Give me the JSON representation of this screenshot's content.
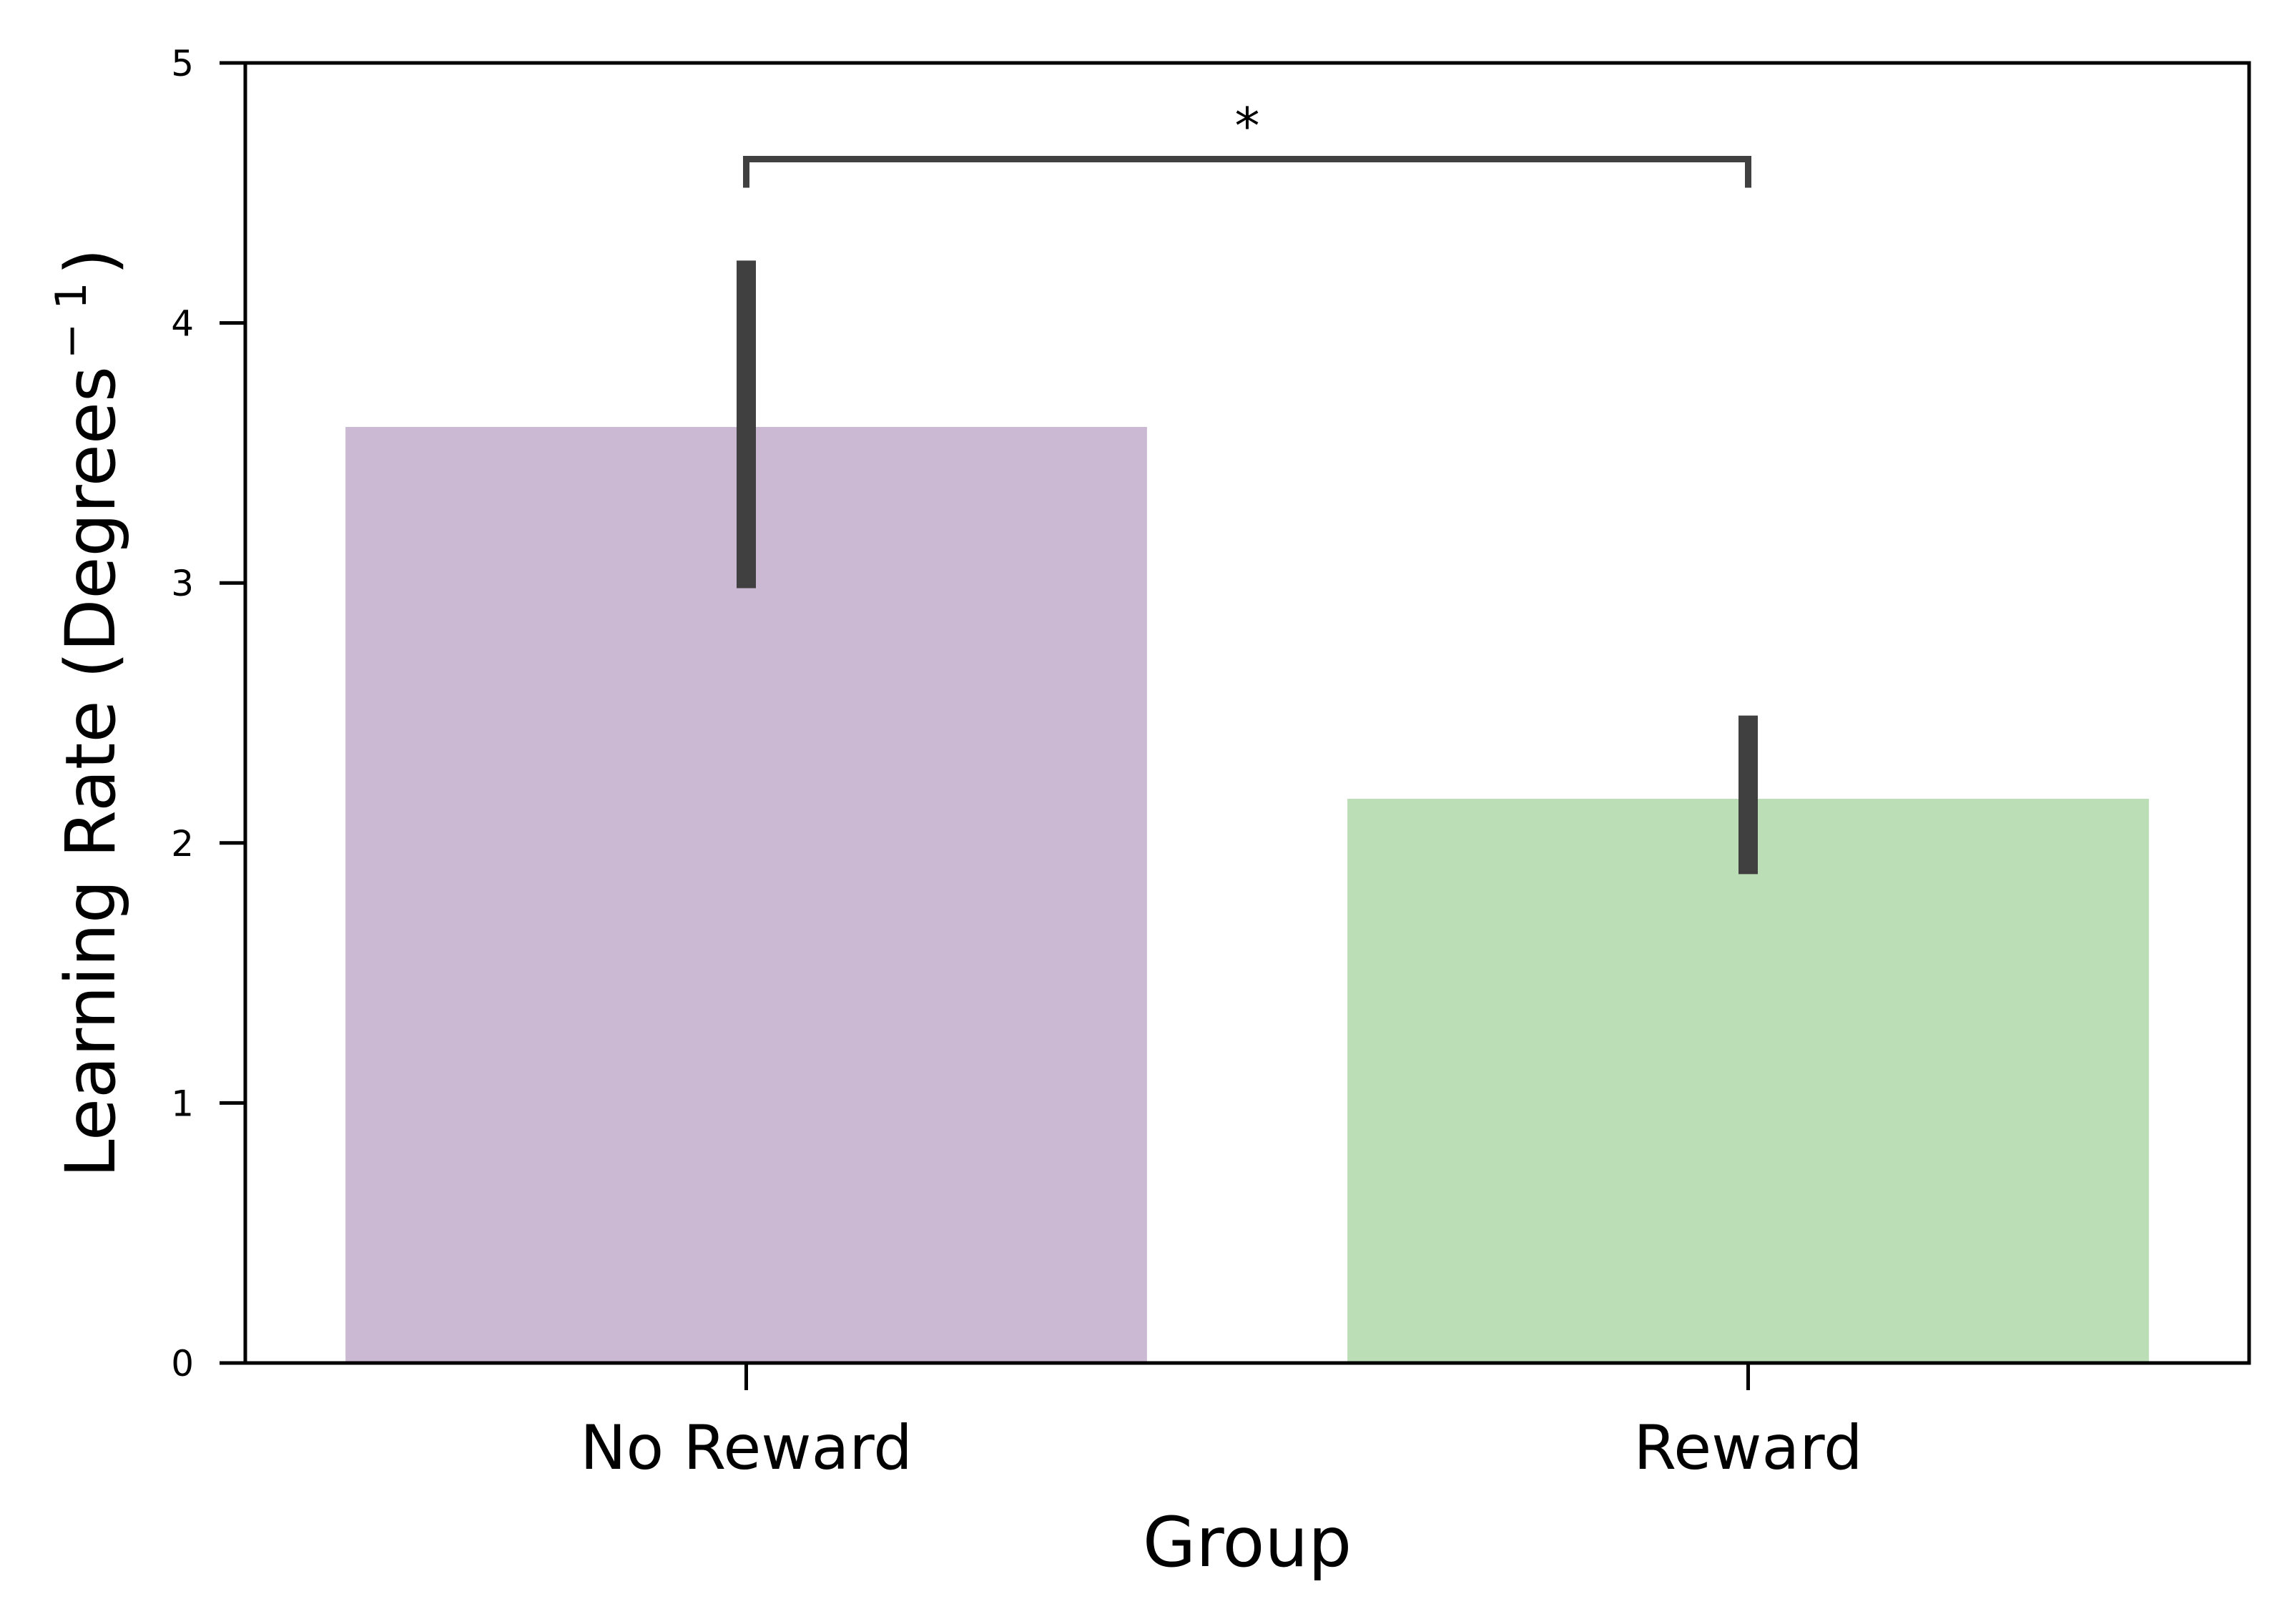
{
  "chart_data": {
    "type": "bar",
    "title": "",
    "xlabel": "Group",
    "ylabel": "Learning Rate (Degrees",
    "ylabel_sup": "− 1",
    "ylabel_close": ")",
    "categories": [
      "No Reward",
      "Reward"
    ],
    "values": [
      3.6,
      2.17
    ],
    "error_bars": [
      {
        "low": 2.98,
        "high": 4.24
      },
      {
        "low": 1.88,
        "high": 2.49
      }
    ],
    "colors": [
      "#cbb9d4",
      "#bcdeb6"
    ],
    "error_color": "#404040",
    "ylim": [
      0,
      5
    ],
    "yticks": [
      "0",
      "1",
      "2",
      "3",
      "4",
      "5"
    ],
    "grid": false,
    "annotations": [
      {
        "type": "significance-bracket",
        "from": "No Reward",
        "to": "Reward",
        "y": 4.63,
        "label": "*"
      }
    ]
  }
}
